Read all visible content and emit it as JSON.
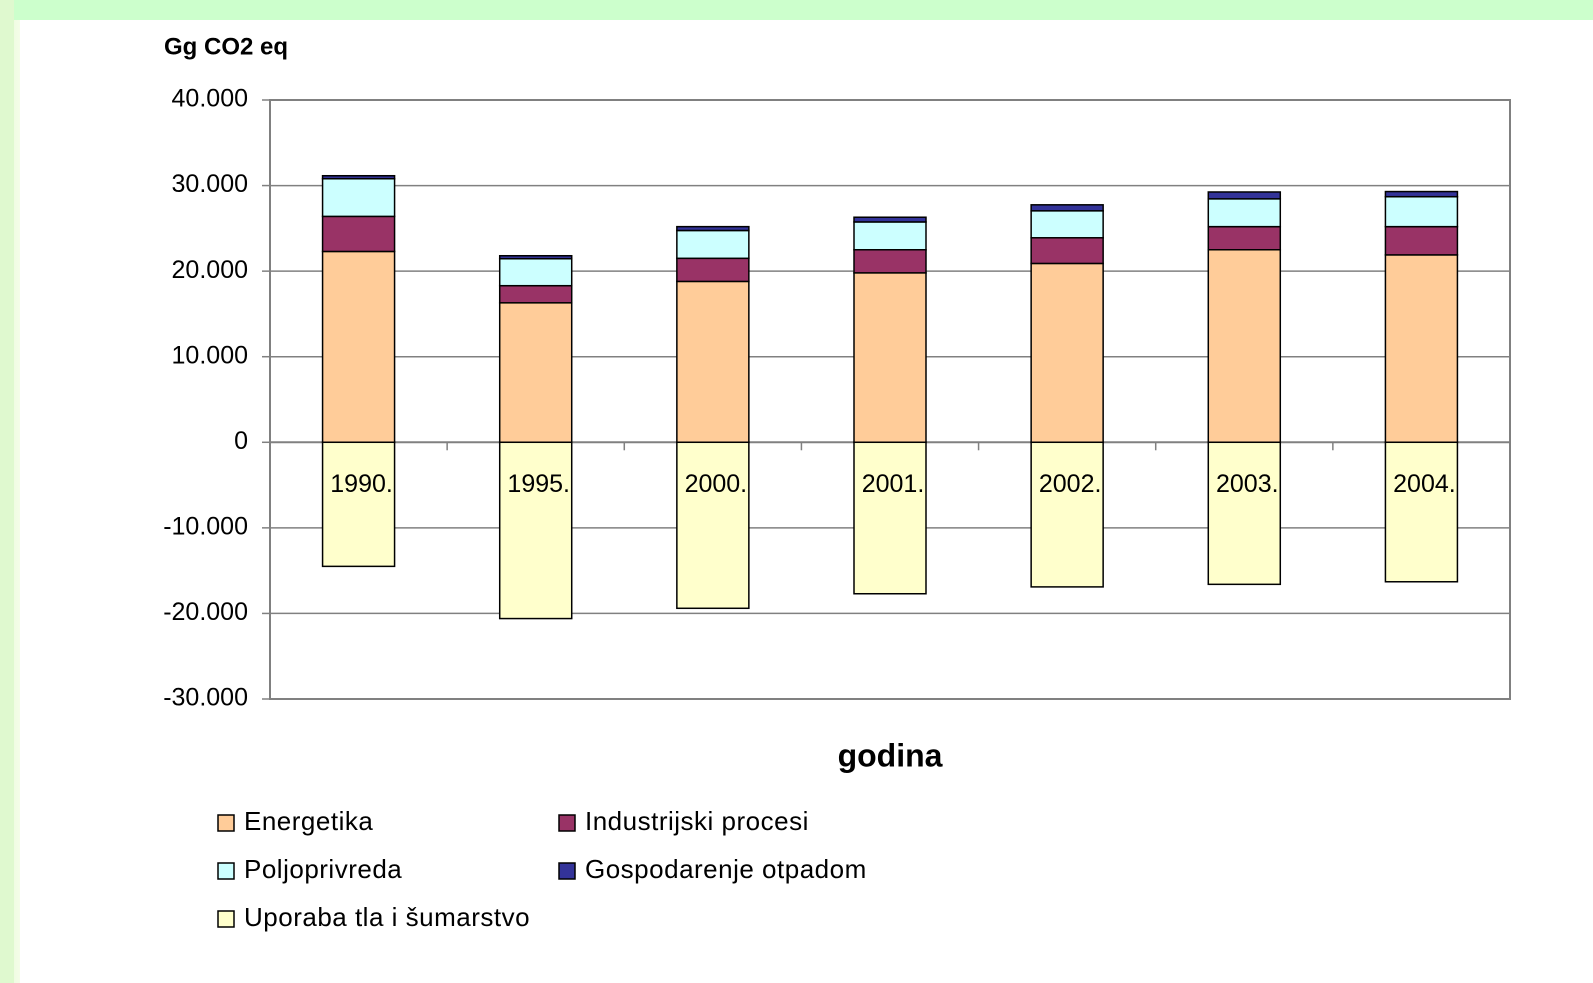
{
  "chart_data": {
    "type": "stacked_bar",
    "y_label": "Gg CO2 eq",
    "x_label": "godina",
    "categories": [
      "1990.",
      "1995.",
      "2000.",
      "2001.",
      "2002.",
      "2003.",
      "2004."
    ],
    "series": [
      {
        "name": "Energetika",
        "color": "#ffcc99",
        "values": [
          22300,
          16300,
          18800,
          19800,
          20900,
          22500,
          21900
        ]
      },
      {
        "name": "Industrijski procesi",
        "color": "#993366",
        "values": [
          4100,
          2000,
          2700,
          2700,
          3000,
          2700,
          3300
        ]
      },
      {
        "name": "Poljoprivreda",
        "color": "#ccffff",
        "values": [
          4400,
          3150,
          3250,
          3250,
          3150,
          3250,
          3500
        ]
      },
      {
        "name": "Gospodarenje otpadom",
        "color": "#333399",
        "values": [
          350,
          350,
          450,
          550,
          700,
          800,
          600
        ]
      },
      {
        "name": "Uporaba tla i šumarstvo",
        "color": "#ffffcc",
        "values": [
          -14500,
          -20600,
          -19400,
          -17700,
          -16900,
          -16600,
          -16300
        ]
      }
    ],
    "ylim": [
      -30000,
      40000
    ],
    "yticks": [
      {
        "value": -30000,
        "label": "-30.000"
      },
      {
        "value": -20000,
        "label": "-20.000"
      },
      {
        "value": -10000,
        "label": "-10.000"
      },
      0,
      {
        "value": 10000,
        "label": "10.000"
      },
      {
        "value": 20000,
        "label": "20.000"
      },
      {
        "value": 30000,
        "label": "30.000"
      },
      {
        "value": 40000,
        "label": "40.000"
      }
    ],
    "grid": true,
    "legend": "bottom"
  }
}
